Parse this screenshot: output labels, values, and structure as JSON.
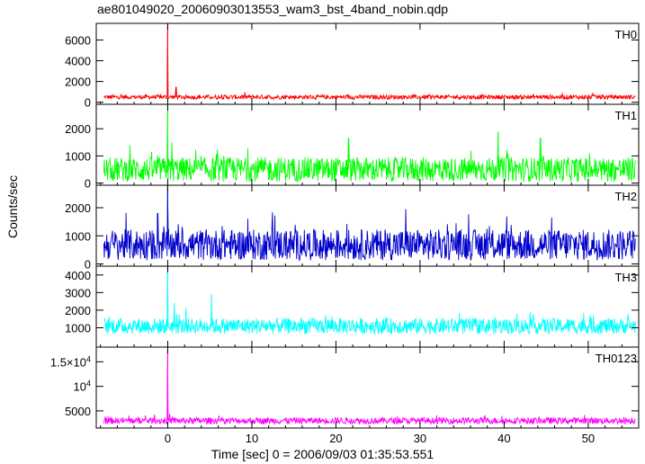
{
  "header": {
    "title": "ae801049020_20060903013553_wam3_bst_4band_nobin.qdp"
  },
  "axes": {
    "ylabel": "Counts/sec",
    "xlabel": "Time [sec] 0 = 2006/09/03 01:35:53.551"
  },
  "chart_data": {
    "type": "line",
    "x_range": [
      -8.5,
      56
    ],
    "x_ticks": [
      0,
      10,
      20,
      30,
      40,
      50
    ],
    "panels": [
      {
        "name": "TH0",
        "color": "#ff0000",
        "ylim": [
          -200,
          7600
        ],
        "y_ticks": [
          {
            "v": 0,
            "label": "0"
          },
          {
            "v": 2000,
            "label": "2000"
          },
          {
            "v": 4000,
            "label": "4000"
          },
          {
            "v": 6000,
            "label": "6000"
          }
        ],
        "baseline": 500,
        "noise": 420,
        "peaks": [
          {
            "x": 0.0,
            "y": 7400
          },
          {
            "x": 1.0,
            "y": 1450
          }
        ]
      },
      {
        "name": "TH1",
        "color": "#00ff00",
        "ylim": [
          -80,
          2900
        ],
        "y_ticks": [
          {
            "v": 0,
            "label": "0"
          },
          {
            "v": 1000,
            "label": "1000"
          },
          {
            "v": 2000,
            "label": "2000"
          }
        ],
        "baseline": 500,
        "noise": 900,
        "peaks": [
          {
            "x": 0.0,
            "y": 2750
          },
          {
            "x": 0.5,
            "y": 1500
          },
          {
            "x": 21.5,
            "y": 1650
          },
          {
            "x": 39.3,
            "y": 1900
          },
          {
            "x": 44.3,
            "y": 1650
          }
        ]
      },
      {
        "name": "TH2",
        "color": "#0000cc",
        "ylim": [
          -80,
          2800
        ],
        "y_ticks": [
          {
            "v": 0,
            "label": "0"
          },
          {
            "v": 1000,
            "label": "1000"
          },
          {
            "v": 2000,
            "label": "2000"
          }
        ],
        "baseline": 680,
        "noise": 1100,
        "peaks": [
          {
            "x": 0.0,
            "y": 2800
          },
          {
            "x": -1.2,
            "y": 1800
          },
          {
            "x": 28.3,
            "y": 1950
          }
        ]
      },
      {
        "name": "TH3",
        "color": "#00ffff",
        "ylim": [
          -100,
          4500
        ],
        "y_ticks": [
          {
            "v": 1000,
            "label": "1000"
          },
          {
            "v": 2000,
            "label": "2000"
          },
          {
            "v": 3000,
            "label": "3000"
          },
          {
            "v": 4000,
            "label": "4000"
          }
        ],
        "baseline": 1100,
        "noise": 900,
        "peaks": [
          {
            "x": 0.0,
            "y": 4450
          },
          {
            "x": 5.2,
            "y": 2900
          },
          {
            "x": 0.8,
            "y": 2400
          }
        ]
      },
      {
        "name": "TH0123",
        "color": "#ff00ff",
        "ylim": [
          1500,
          18000
        ],
        "y_ticks": [
          {
            "v": 5000,
            "label": "5000"
          },
          {
            "v": 10000,
            "label": "10",
            "sup": "4"
          },
          {
            "v": 15000,
            "label": "1.5×10",
            "sup": "4"
          }
        ],
        "baseline": 3000,
        "noise": 1300,
        "peaks": [
          {
            "x": 0.0,
            "y": 17500
          }
        ]
      }
    ]
  }
}
